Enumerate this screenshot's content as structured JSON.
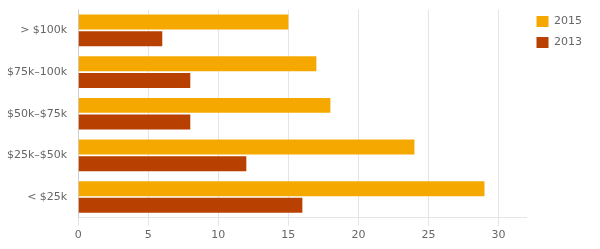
{
  "chart_data": {
    "type": "bar",
    "orientation": "horizontal",
    "categories": [
      "> $100k",
      "$75k–100k",
      "$50k–$75k",
      "$25k–$50k",
      "< $25k"
    ],
    "series": [
      {
        "name": "2015",
        "color": "#F5A800",
        "values": [
          15,
          17,
          18,
          24,
          29
        ]
      },
      {
        "name": "2013",
        "color": "#B84000",
        "values": [
          6,
          8,
          8,
          12,
          16
        ]
      }
    ],
    "xlim": [
      0,
      32
    ],
    "xticks": [
      0,
      5,
      10,
      15,
      20,
      25,
      30
    ],
    "grid": true,
    "legend": "right"
  }
}
